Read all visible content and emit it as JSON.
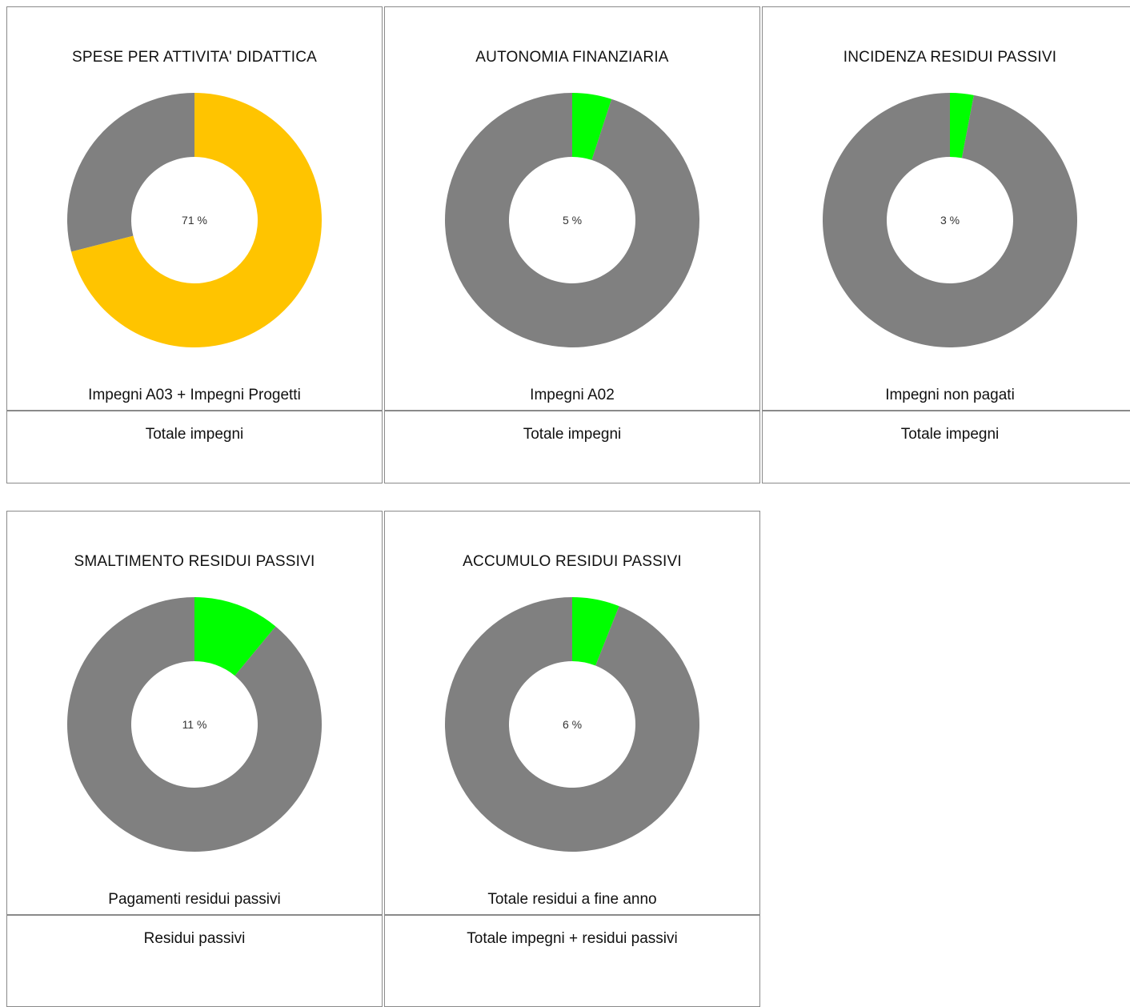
{
  "chart_data": [
    {
      "type": "pie",
      "donut": true,
      "title": "SPESE PER ATTIVITA' DIDATTICA",
      "percent": 71,
      "center_label": "71 %",
      "numerator_label": "Impegni A03 + Impegni Progetti",
      "denominator_label": "Totale impegni",
      "colors": {
        "value": "#ffc400",
        "rest": "#808080"
      }
    },
    {
      "type": "pie",
      "donut": true,
      "title": "AUTONOMIA  FINANZIARIA",
      "percent": 5,
      "center_label": "5 %",
      "numerator_label": "Impegni A02",
      "denominator_label": "Totale impegni",
      "colors": {
        "value": "#00ff00",
        "rest": "#808080"
      }
    },
    {
      "type": "pie",
      "donut": true,
      "title": "INCIDENZA  RESIDUI  PASSIVI",
      "percent": 3,
      "center_label": "3 %",
      "numerator_label": "Impegni non pagati",
      "denominator_label": "Totale impegni",
      "colors": {
        "value": "#00ff00",
        "rest": "#808080"
      }
    },
    {
      "type": "pie",
      "donut": true,
      "title": "SMALTIMENTO  RESIDUI  PASSIVI",
      "percent": 11,
      "center_label": "11 %",
      "numerator_label": "Pagamenti residui passivi",
      "denominator_label": "Residui passivi",
      "colors": {
        "value": "#00ff00",
        "rest": "#808080"
      }
    },
    {
      "type": "pie",
      "donut": true,
      "title": "ACCUMULO  RESIDUI  PASSIVI",
      "percent": 6,
      "center_label": "6 %",
      "numerator_label": "Totale residui a fine anno",
      "denominator_label": "Totale impegni + residui passivi",
      "colors": {
        "value": "#00ff00",
        "rest": "#808080"
      }
    }
  ]
}
